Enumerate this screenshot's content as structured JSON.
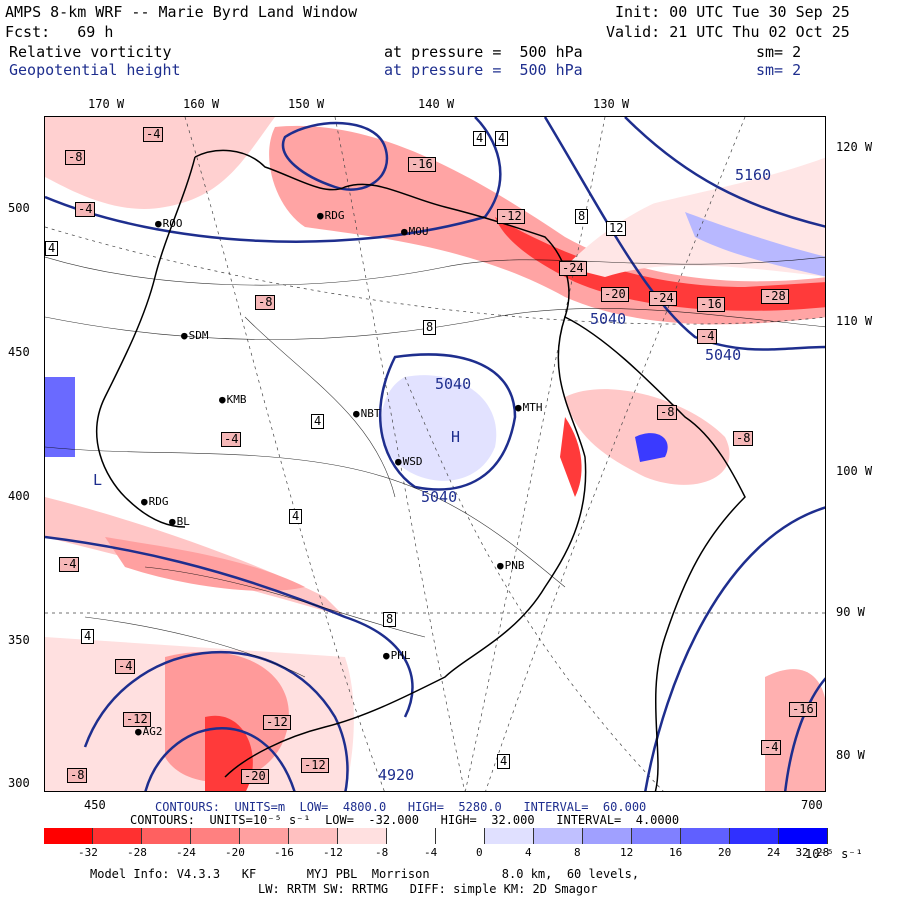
{
  "header": {
    "title": "AMPS 8-km WRF -- Marie Byrd Land Window",
    "init": "Init: 00 UTC Tue 30 Sep 25",
    "fcst": "Fcst:   69 h",
    "valid": "Valid: 21 UTC Thu 02 Oct 25",
    "field1": {
      "name": "Relative vorticity",
      "level": "at pressure =  500 hPa",
      "sm": "sm= 2"
    },
    "field2": {
      "name": "Geopotential height",
      "level": "at pressure =  500 hPa",
      "sm": "sm= 2"
    }
  },
  "axes": {
    "top_longitudes": [
      "170 W",
      "160 W",
      "150 W",
      "140 W",
      "130 W"
    ],
    "right_longitudes": [
      "120 W",
      "110 W",
      "100 W",
      "90 W",
      "80 W"
    ],
    "left_ticks": [
      "500",
      "450",
      "400",
      "350",
      "300"
    ],
    "bottom_ticks": [
      "450",
      "700"
    ]
  },
  "stations": [
    "ROO",
    "RDG",
    "MOU",
    "SDM",
    "KMB",
    "MTH",
    "WSD",
    "NBT",
    "PNB",
    "PHL",
    "AG2",
    "RDG",
    "BL"
  ],
  "contour_labels": {
    "vorticity": [
      "-4",
      "-8",
      "4",
      "4",
      "-4",
      "4",
      "8",
      "-16",
      "-12",
      "12",
      "-24",
      "-20",
      "-24",
      "-16",
      "-28",
      "-8",
      "8",
      "-4",
      "4",
      "-4",
      "-8",
      "-8",
      "4",
      "-4",
      "-12",
      "-20",
      "-12",
      "-4",
      "-8",
      "4",
      "-4",
      "-16",
      "-12",
      "4",
      "8"
    ],
    "height": [
      "5160",
      "5040",
      "5040",
      "5040",
      "5040",
      "4920"
    ],
    "features": [
      "L",
      "H"
    ]
  },
  "footer": {
    "height_contours": "CONTOURS:  UNITS=m  LOW=  4800.0   HIGH=  5280.0   INTERVAL=  60.000",
    "vort_contours": "CONTOURS:  UNITS=10⁻⁵ s⁻¹  LOW=  -32.000   HIGH=  32.000   INTERVAL=  4.0000",
    "colorbar_labels": [
      "-32",
      "-28",
      "-24",
      "-20",
      "-16",
      "-12",
      "-8",
      "-4",
      "0",
      "4",
      "8",
      "12",
      "16",
      "20",
      "24",
      "28",
      "32"
    ],
    "colorbar_unit": "10⁻⁵ s⁻¹",
    "colorbar_colors": [
      "#ff0000",
      "#ff3030",
      "#ff6060",
      "#ff8080",
      "#ffa0a0",
      "#ffc0c0",
      "#ffe0e0",
      "#ffffff",
      "#ffffff",
      "#e0e0ff",
      "#c0c0ff",
      "#a0a0ff",
      "#8080ff",
      "#6060ff",
      "#3030ff",
      "#0000ff"
    ],
    "model_info": "Model Info: V4.3.3   KF       MYJ PBL  Morrison          8.0 km,  60 levels,",
    "physics": "LW: RRTM SW: RRTMG   DIFF: simple KM: 2D Smagor"
  }
}
